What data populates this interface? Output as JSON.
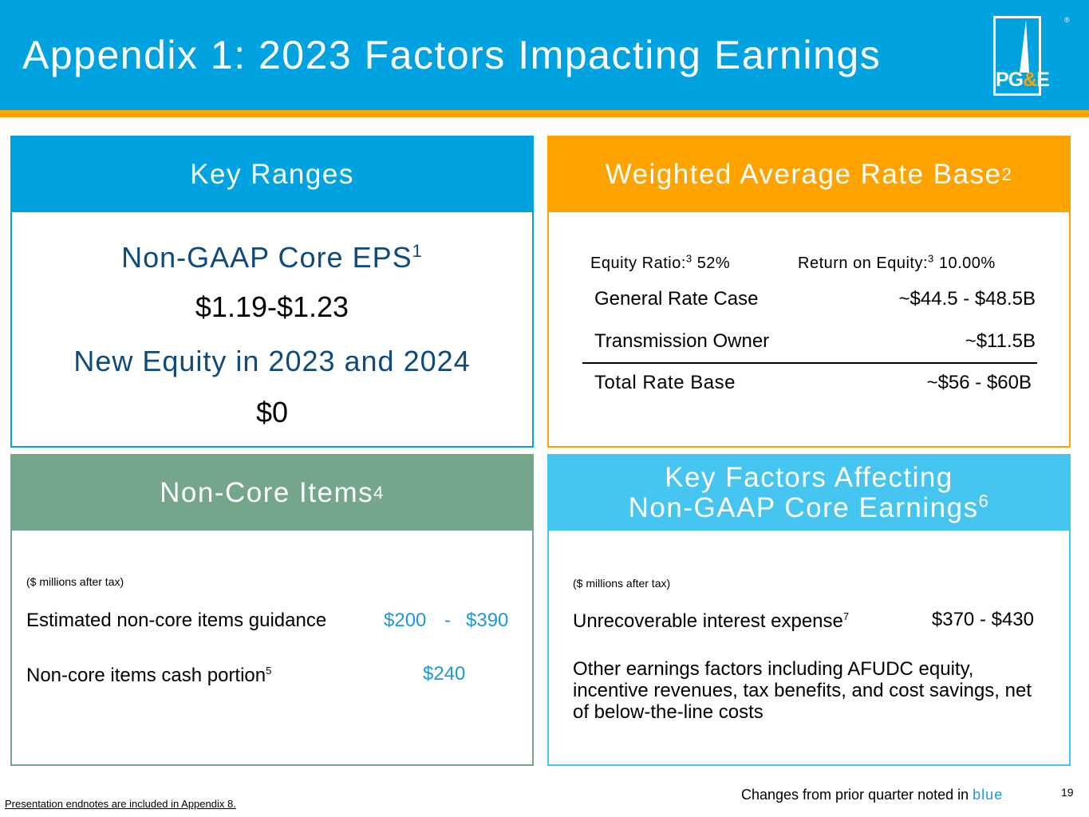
{
  "header": {
    "title": "Appendix 1: 2023 Factors Impacting Earnings",
    "logo": {
      "pg": "PG",
      "amp": "&",
      "e": "E",
      "reg": "®"
    }
  },
  "colors": {
    "brand_blue": "#00a3e0",
    "brand_orange": "#ffa300",
    "green": "#73a68a",
    "light_blue": "#45c5f0",
    "navy": "#0e4a7b"
  },
  "key_ranges": {
    "title": "Key Ranges",
    "eps_label": "Non-GAAP Core EPS",
    "eps_fn": "1",
    "eps_value": "$1.19-$1.23",
    "equity_label": "New Equity in 2023 and 2024",
    "equity_value": "$0"
  },
  "rate_base": {
    "title": "Weighted Average Rate Base",
    "title_fn": "2",
    "equity_ratio_label": "Equity Ratio:",
    "equity_ratio_fn": "3",
    "equity_ratio_value": "52%",
    "roe_label": "Return on Equity:",
    "roe_fn": "3",
    "roe_value": "10.00%",
    "rows": [
      {
        "label": "General Rate Case",
        "value": "~$44.5 - $48.5B"
      },
      {
        "label": "Transmission Owner",
        "value": "~$11.5B"
      }
    ],
    "total": {
      "label": "Total Rate Base",
      "value": "~$56 - $60B"
    }
  },
  "non_core": {
    "title": "Non-Core Items",
    "title_fn": "4",
    "units": "($ millions after tax)",
    "guidance_label": "Estimated non-core items guidance",
    "guidance_low": "$200",
    "guidance_dash": "-",
    "guidance_high": "$390",
    "cash_label": "Non-core items cash portion",
    "cash_fn": "5",
    "cash_value": "$240"
  },
  "key_factors": {
    "title_line1": "Key Factors Affecting",
    "title_line2": "Non-GAAP Core Earnings",
    "title_fn": "6",
    "units": "($ millions after tax)",
    "interest_label": "Unrecoverable interest expense",
    "interest_fn": "7",
    "interest_value": "$370 - $430",
    "other_text": "Other earnings factors including AFUDC equity, incentive revenues, tax benefits, and cost savings, net of below-the-line costs"
  },
  "footer": {
    "endnotes": "Presentation endnotes are included in Appendix 8.",
    "changes_prefix": "Changes from prior quarter noted in",
    "changes_blue": "blue",
    "page_number": "19"
  }
}
